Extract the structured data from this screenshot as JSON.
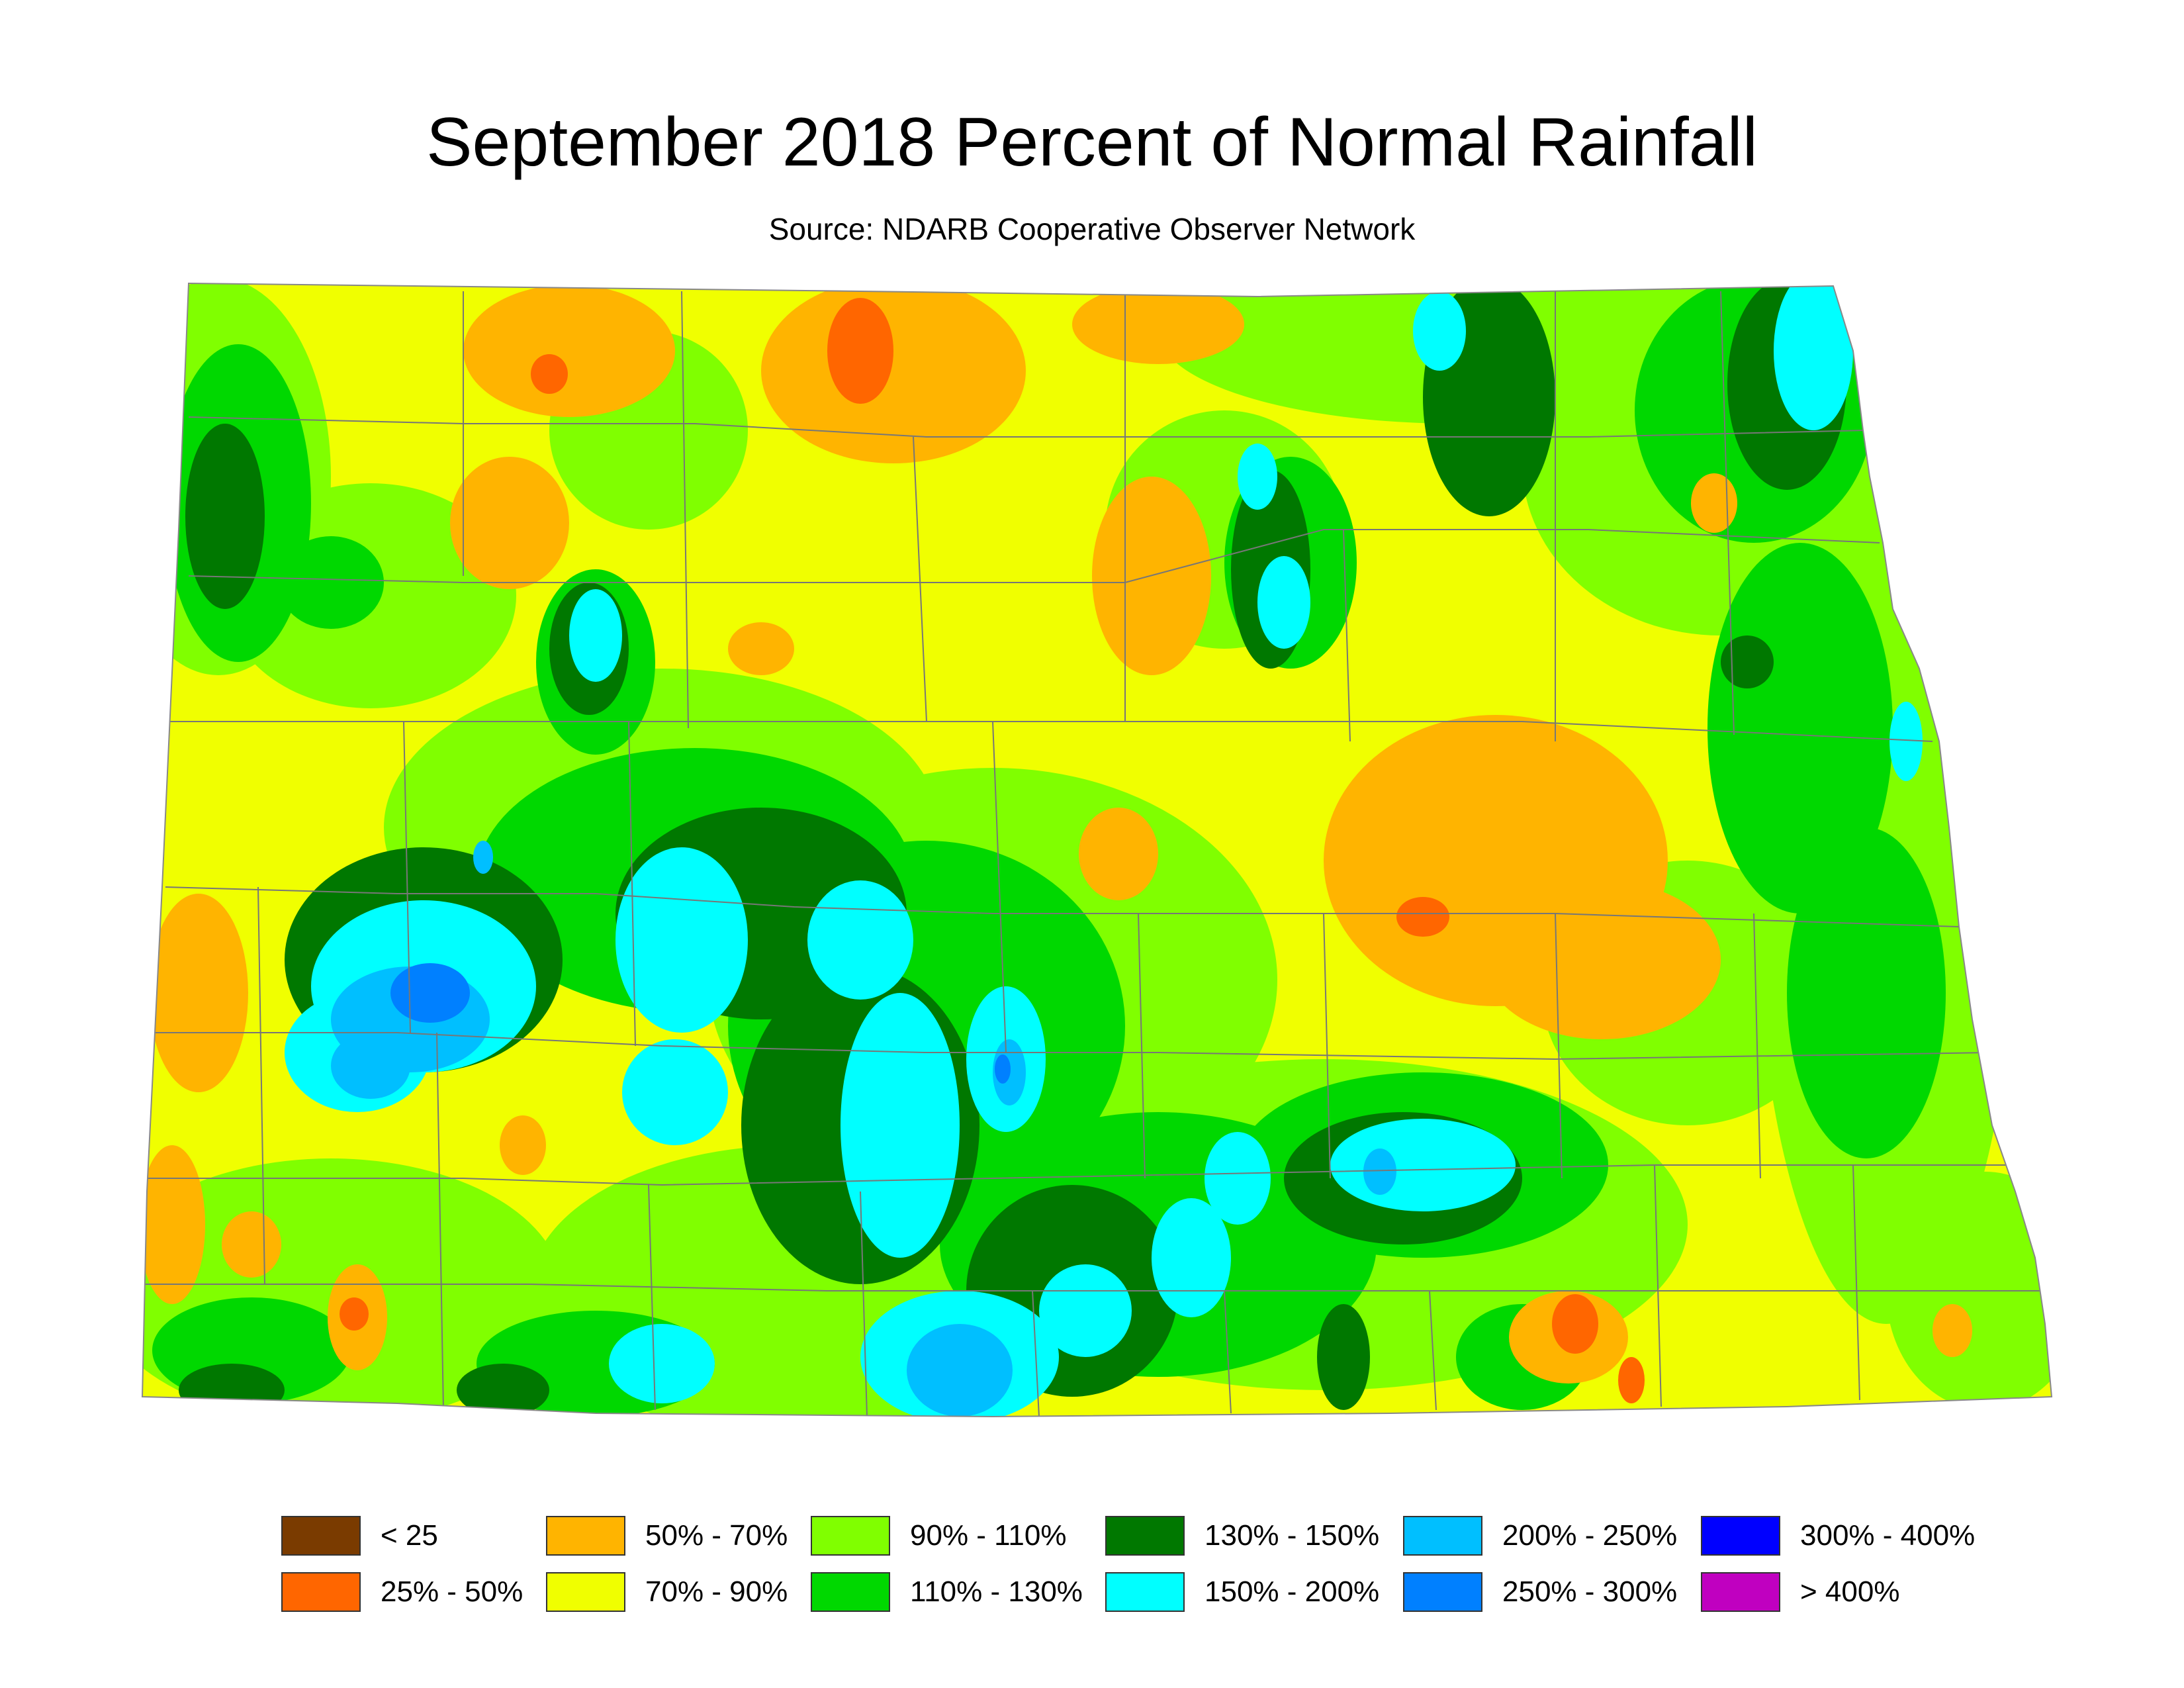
{
  "title": "September 2018 Percent of Normal Rainfall",
  "subtitle": "Source: NDARB Cooperative Observer Network",
  "colors": {
    "lt25": "#7a3b00",
    "c25_50": "#ff6600",
    "c50_70": "#ffb400",
    "c70_90": "#f0ff00",
    "c90_110": "#80ff00",
    "c110_130": "#00d800",
    "c130_150": "#007800",
    "c150_200": "#00ffff",
    "c200_250": "#00bfff",
    "c250_300": "#0080ff",
    "c300_400": "#0000ff",
    "gt400": "#c000c0",
    "county_lines": "#777777"
  },
  "legend": [
    {
      "label": "< 25",
      "color": "#7a3b00"
    },
    {
      "label": "25% - 50%",
      "color": "#ff6600"
    },
    {
      "label": "50% - 70%",
      "color": "#ffb400"
    },
    {
      "label": "70% - 90%",
      "color": "#f0ff00"
    },
    {
      "label": "90% - 110%",
      "color": "#80ff00"
    },
    {
      "label": "110% - 130%",
      "color": "#00d800"
    },
    {
      "label": "130% - 150%",
      "color": "#007800"
    },
    {
      "label": "150% - 200%",
      "color": "#00ffff"
    },
    {
      "label": "200% - 250%",
      "color": "#00bfff"
    },
    {
      "label": "250% - 300%",
      "color": "#0080ff"
    },
    {
      "label": "300% - 400%",
      "color": "#0000ff"
    },
    {
      "label": "> 400%",
      "color": "#c000c0"
    }
  ]
}
